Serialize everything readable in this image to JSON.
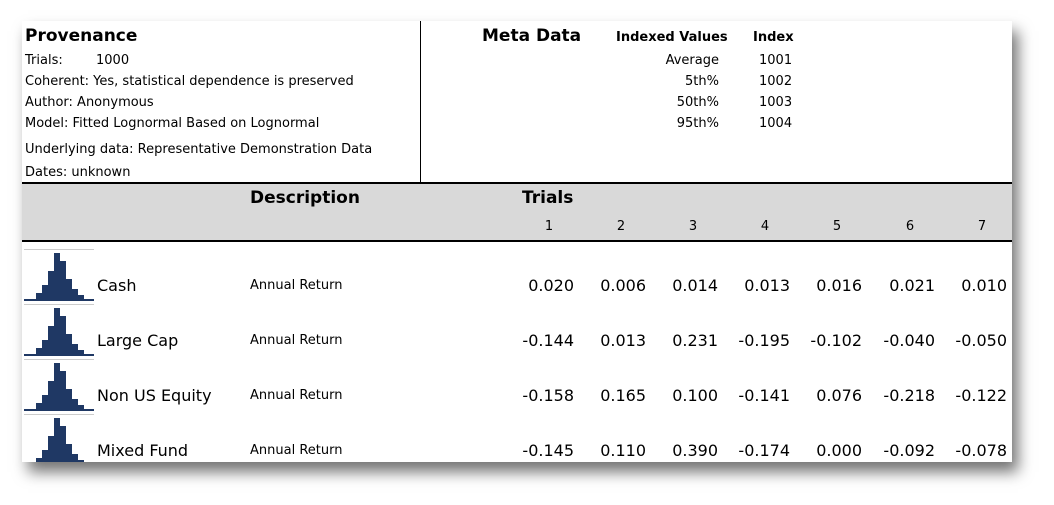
{
  "provenance": {
    "title": "Provenance",
    "trials_label": "Trials:",
    "trials_value": "1000",
    "coherent": "Coherent: Yes, statistical dependence is preserved",
    "author": "Author: Anonymous",
    "model": "Model: Fitted Lognormal Based on Lognormal",
    "underlying": "Underlying data: Representative Demonstration Data",
    "dates": "Dates: unknown"
  },
  "meta": {
    "title": "Meta Data",
    "col_indexed_values": "Indexed Values",
    "col_index": "Index",
    "rows": [
      {
        "label": "Average",
        "index": "1001"
      },
      {
        "label": "5th%",
        "index": "1002"
      },
      {
        "label": "50th%",
        "index": "1003"
      },
      {
        "label": "95th%",
        "index": "1004"
      }
    ]
  },
  "table": {
    "description_header": "Description",
    "trials_header": "Trials",
    "trial_numbers": [
      "1",
      "2",
      "3",
      "4",
      "5",
      "6",
      "7"
    ],
    "rows": [
      {
        "name": "Cash",
        "description": "Annual Return",
        "values": [
          "0.020",
          "0.006",
          "0.014",
          "0.013",
          "0.016",
          "0.021",
          "0.010"
        ]
      },
      {
        "name": "Large Cap",
        "description": "Annual Return",
        "values": [
          "-0.144",
          "0.013",
          "0.231",
          "-0.195",
          "-0.102",
          "-0.040",
          "-0.050"
        ]
      },
      {
        "name": "Non US Equity",
        "description": "Annual Return",
        "values": [
          "-0.158",
          "0.165",
          "0.100",
          "-0.141",
          "0.076",
          "-0.218",
          "-0.122"
        ]
      },
      {
        "name": "Mixed Fund",
        "description": "Annual Return",
        "values": [
          "-0.145",
          "0.110",
          "0.390",
          "-0.174",
          "0.000",
          "-0.092",
          "-0.078"
        ]
      }
    ]
  },
  "colors": {
    "spark_bar": "#1f3864",
    "header_band": "#d9d9d9"
  },
  "icons": {
    "histogram": "histogram-sparkline-icon"
  }
}
